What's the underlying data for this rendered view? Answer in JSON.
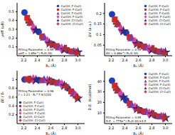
{
  "chart_data": [
    {
      "type": "scatter",
      "x_label": "R₁ (Å)",
      "y_label": "μeff (μB)",
      "xlim": [
        2.1,
        3.1
      ],
      "xticks": [
        2.2,
        2.4,
        2.6,
        2.8,
        {
          "value": 3,
          "label": "3.0"
        }
      ],
      "ylim": [
        0,
        0.6
      ],
      "yticks": [
        0.1,
        0.2,
        0.3,
        0.4,
        0.5
      ],
      "grid": false,
      "legend": "upper right",
      "annotations": [
        "Fitting Parameter = 0.95",
        "μeff = 1.65e^(-R₁/0.30)"
      ],
      "fit": {
        "color": "#c00000",
        "x": [
          2.2,
          2.3,
          2.4,
          2.5,
          2.6,
          2.7,
          2.8,
          2.9,
          3.0
        ],
        "values": [
          0.5,
          0.36,
          0.26,
          0.19,
          0.14,
          0.1,
          0.07,
          0.05,
          0.035
        ]
      },
      "series": [
        {
          "name": "Cu(I)H, F-Cu(I)",
          "color": "#1f3fbf",
          "marker": "circle",
          "x": [
            2.21,
            2.42,
            2.63,
            2.85
          ],
          "values": [
            0.49,
            0.27,
            0.13,
            0.06
          ]
        },
        {
          "name": "Cu(II)H, F-Cu(I)",
          "color": "#d62728",
          "marker": "square",
          "x": [
            2.25,
            2.47,
            2.68,
            2.9
          ],
          "values": [
            0.43,
            0.22,
            0.11,
            0.05
          ]
        },
        {
          "name": "Cu(I)H, F-Cu(II)",
          "color": "#7b3fa0",
          "marker": "triangle",
          "x": [
            2.3,
            2.5,
            2.72,
            2.94
          ],
          "values": [
            0.37,
            0.2,
            0.09,
            0.04
          ]
        },
        {
          "name": "Cu(II)H, F-Cu(II)",
          "color": "#e040a0",
          "marker": "diamond",
          "x": [
            2.34,
            2.55,
            2.76,
            2.97
          ],
          "values": [
            0.31,
            0.16,
            0.08,
            0.03
          ]
        },
        {
          "name": "Cu(I)H, Cl-Cu(I)",
          "color": "#2c2c80",
          "marker": "star",
          "x": [
            2.38,
            2.58,
            2.8,
            3.0
          ],
          "values": [
            0.29,
            0.14,
            0.07,
            0.04
          ]
        },
        {
          "name": "Cu(II)H, Cl-Cu(I)",
          "color": "#b03030",
          "marker": "cross",
          "x": [
            2.28,
            2.6,
            2.82,
            2.98
          ],
          "values": [
            0.38,
            0.13,
            0.08,
            0.03
          ]
        }
      ]
    },
    {
      "type": "scatter",
      "x_label": "R₁ (Å)",
      "y_label": "ΔV (a.u.)",
      "xlim": [
        2.1,
        3.1
      ],
      "xticks": [
        2.2,
        2.4,
        2.6,
        2.8,
        {
          "value": 3,
          "label": "3.0"
        }
      ],
      "ylim": [
        0,
        0.25
      ],
      "yticks": [
        0.05,
        0.1,
        0.15,
        0.2
      ],
      "grid": false,
      "legend": "upper right",
      "annotations": [
        "Fitting Parameter = 0.95",
        "ΔV = 0.66e^(-R₁/0.30)"
      ],
      "fit": {
        "color": "#c00000",
        "x": [
          2.2,
          2.3,
          2.4,
          2.5,
          2.6,
          2.7,
          2.8,
          2.9,
          3.0
        ],
        "values": [
          0.2,
          0.144,
          0.104,
          0.076,
          0.056,
          0.04,
          0.028,
          0.02,
          0.014
        ]
      },
      "series": [
        {
          "name": "Cu(I)H, F-Cu(I)",
          "color": "#1f3fbf",
          "marker": "circle",
          "x": [
            2.21,
            2.42,
            2.63,
            2.85
          ],
          "values": [
            0.196,
            0.108,
            0.052,
            0.024
          ]
        },
        {
          "name": "Cu(II)H, F-Cu(I)",
          "color": "#d62728",
          "marker": "square",
          "x": [
            2.25,
            2.47,
            2.68,
            2.9
          ],
          "values": [
            0.172,
            0.088,
            0.044,
            0.02
          ]
        },
        {
          "name": "Cu(I)H, F-Cu(II)",
          "color": "#7b3fa0",
          "marker": "triangle",
          "x": [
            2.3,
            2.5,
            2.72,
            2.94
          ],
          "values": [
            0.148,
            0.08,
            0.036,
            0.016
          ]
        },
        {
          "name": "Cu(II)H, F-Cu(II)",
          "color": "#e040a0",
          "marker": "diamond",
          "x": [
            2.34,
            2.55,
            2.76,
            2.97
          ],
          "values": [
            0.124,
            0.064,
            0.032,
            0.012
          ]
        },
        {
          "name": "Cu(I)H, Cl-Cu(I)",
          "color": "#2c2c80",
          "marker": "star",
          "x": [
            2.38,
            2.58,
            2.8,
            3.0
          ],
          "values": [
            0.116,
            0.056,
            0.028,
            0.016
          ]
        },
        {
          "name": "Cu(II)H, Cl-Cu(I)",
          "color": "#b03030",
          "marker": "cross",
          "x": [
            2.28,
            2.6,
            2.82,
            2.98
          ],
          "values": [
            0.152,
            0.052,
            0.032,
            0.012
          ]
        }
      ]
    },
    {
      "type": "scatter",
      "x_label": "R₁ (Å)",
      "y_label": "ΔE / E₀",
      "xlim": [
        2.1,
        3.1
      ],
      "xticks": [
        2.2,
        2.4,
        2.6,
        2.8,
        {
          "value": 3,
          "label": "3.0"
        }
      ],
      "ylim": [
        0,
        1.2
      ],
      "yticks": [
        0.2,
        0.4,
        0.6,
        0.8,
        1
      ],
      "grid": false,
      "legend": "lower left",
      "annotations": [
        "Fitting Parameter = 0.96",
        "f = 1.21 - R₁^7.9/1220"
      ],
      "fit": {
        "color": "#c00000",
        "x": [
          2.2,
          2.3,
          2.4,
          2.5,
          2.6,
          2.7,
          2.8,
          2.9,
          3.0
        ],
        "values": [
          1.0,
          1.0,
          0.99,
          0.98,
          0.96,
          0.92,
          0.85,
          0.74,
          0.58
        ]
      },
      "series": [
        {
          "name": "Cu(I)H, F-Cu(I)",
          "color": "#1f3fbf",
          "marker": "circle",
          "x": [
            2.21,
            2.42,
            2.63,
            2.85
          ],
          "values": [
            1.0,
            0.99,
            0.95,
            0.8
          ]
        },
        {
          "name": "Cu(II)H, F-Cu(I)",
          "color": "#d62728",
          "marker": "square",
          "x": [
            2.25,
            2.47,
            2.68,
            2.9
          ],
          "values": [
            1.01,
            0.98,
            0.93,
            0.73
          ]
        },
        {
          "name": "Cu(I)H, F-Cu(II)",
          "color": "#7b3fa0",
          "marker": "triangle",
          "x": [
            2.3,
            2.5,
            2.72,
            2.94
          ],
          "values": [
            0.99,
            0.98,
            0.91,
            0.67
          ]
        },
        {
          "name": "Cu(II)H, F-Cu(II)",
          "color": "#e040a0",
          "marker": "diamond",
          "x": [
            2.34,
            2.55,
            2.76,
            2.97
          ],
          "values": [
            1.0,
            0.97,
            0.89,
            0.62
          ]
        },
        {
          "name": "Cu(I)H, Cl-Cu(I)",
          "color": "#2c2c80",
          "marker": "star",
          "x": [
            2.38,
            2.58,
            2.8,
            3.0
          ],
          "values": [
            0.99,
            0.96,
            0.86,
            0.57
          ]
        },
        {
          "name": "Cu(II)H, Cl-Cu(I)",
          "color": "#b03030",
          "marker": "cross",
          "x": [
            2.28,
            2.6,
            2.82,
            2.98
          ],
          "values": [
            1.0,
            0.96,
            0.84,
            0.6
          ]
        }
      ]
    },
    {
      "type": "scatter",
      "x_label": "R₁ (Å)",
      "y_label": "D.E. (kcal/mol)",
      "xlim": [
        2.1,
        3.1
      ],
      "xticks": [
        2.2,
        2.4,
        2.6,
        2.8,
        {
          "value": 3,
          "label": "3.0"
        }
      ],
      "ylim": [
        0,
        50
      ],
      "yticks": [
        10,
        20,
        30,
        40
      ],
      "grid": false,
      "legend": "upper right",
      "annotations": [
        "Fitting Parameter = 0.95",
        "D.E. = 775e^(-R₁/0.30)+4.5"
      ],
      "fit": {
        "color": "#c00000",
        "x": [
          2.2,
          2.3,
          2.4,
          2.5,
          2.6,
          2.7,
          2.8,
          2.9,
          3.0
        ],
        "values": [
          42,
          31,
          23,
          17,
          13,
          10,
          8,
          6.5,
          5.5
        ]
      },
      "series": [
        {
          "name": "Cu(I)H, F-Cu(I)",
          "color": "#1f3fbf",
          "marker": "circle",
          "x": [
            2.21,
            2.42,
            2.63,
            2.85
          ],
          "values": [
            40.5,
            22,
            12.5,
            7.5
          ]
        },
        {
          "name": "Cu(II)H, F-Cu(I)",
          "color": "#d62728",
          "marker": "square",
          "x": [
            2.25,
            2.47,
            2.68,
            2.9
          ],
          "values": [
            36,
            19,
            11.5,
            6.8
          ]
        },
        {
          "name": "Cu(I)H, F-Cu(II)",
          "color": "#7b3fa0",
          "marker": "triangle",
          "x": [
            2.3,
            2.5,
            2.72,
            2.94
          ],
          "values": [
            31,
            17,
            10.5,
            6.2
          ]
        },
        {
          "name": "Cu(II)H, F-Cu(II)",
          "color": "#e040a0",
          "marker": "diamond",
          "x": [
            2.34,
            2.55,
            2.76,
            2.97
          ],
          "values": [
            27.5,
            15,
            9.5,
            5.8
          ]
        },
        {
          "name": "Cu(I)H, Cl-Cu(I)",
          "color": "#2c2c80",
          "marker": "star",
          "x": [
            2.38,
            2.58,
            2.8,
            3.0
          ],
          "values": [
            25,
            14,
            9,
            5.5
          ]
        },
        {
          "name": "Cu(II)H, Cl-Cu(I)",
          "color": "#b03030",
          "marker": "cross",
          "x": [
            2.28,
            2.6,
            2.82,
            2.98
          ],
          "values": [
            32,
            13,
            9,
            5.7
          ]
        }
      ]
    }
  ]
}
